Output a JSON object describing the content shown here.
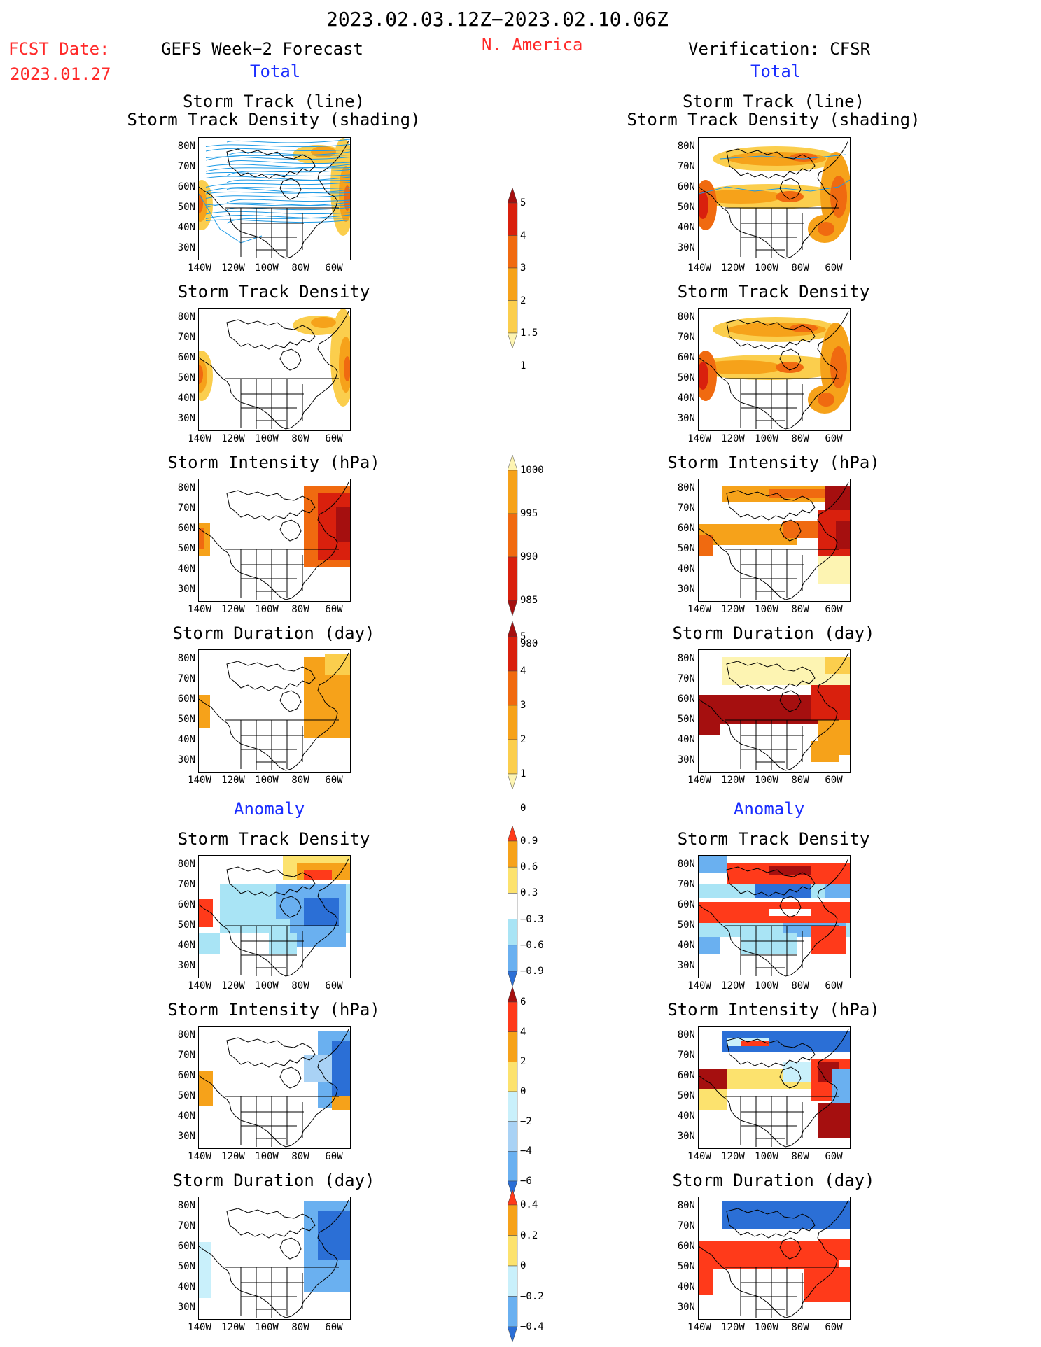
{
  "header": {
    "date_range": "2023.02.03.12Z−2023.02.10.06Z",
    "fcst_label": "FCST Date:",
    "fcst_date": "2023.01.27",
    "left_title": "GEFS Week−2 Forecast",
    "region": "N. America",
    "right_title": "Verification: CFSR"
  },
  "sections": {
    "total": "Total",
    "anomaly": "Anomaly"
  },
  "panel_titles": {
    "track": "Storm Track (line)\nStorm Track Density (shading)",
    "density": "Storm Track Density",
    "intensity": "Storm Intensity (hPa)",
    "duration": "Storm Duration (day)"
  },
  "axes": {
    "lat_labels": [
      "80N",
      "70N",
      "60N",
      "50N",
      "40N",
      "30N"
    ],
    "lon_labels": [
      "140W",
      "120W",
      "100W",
      "80W",
      "60W"
    ]
  },
  "colorbars": {
    "track_density": {
      "labels": [
        "5",
        "4",
        "3",
        "2",
        "1.5",
        "1"
      ],
      "colors": [
        "#a50f0f",
        "#d9200d",
        "#f06a10",
        "#f6a21a",
        "#fbce4d",
        "#fdf4b2"
      ]
    },
    "intensity": {
      "labels": [
        "1000",
        "995",
        "990",
        "985",
        "980"
      ],
      "colors": [
        "#fdf4b2",
        "#f6a21a",
        "#f06a10",
        "#d9200d",
        "#a50f0f"
      ]
    },
    "duration": {
      "labels": [
        "5",
        "4",
        "3",
        "2",
        "1",
        "0"
      ],
      "colors": [
        "#a50f0f",
        "#d9200d",
        "#f06a10",
        "#f6a21a",
        "#fbce4d",
        "#fdf4b2"
      ]
    },
    "anom_density": {
      "labels": [
        "0.9",
        "0.6",
        "0.3",
        "−0.3",
        "−0.6",
        "−0.9"
      ],
      "colors": [
        "#ff3a1a",
        "#f6a21a",
        "#fce26e",
        "#ffffff",
        "#a9e4f5",
        "#6ab0f0",
        "#2b6fd6"
      ]
    },
    "anom_intensity": {
      "labels": [
        "6",
        "4",
        "2",
        "0",
        "−2",
        "−4",
        "−6"
      ],
      "colors": [
        "#a50f0f",
        "#ff3a1a",
        "#f6a21a",
        "#fce26e",
        "#c9f0fb",
        "#a9d2f5",
        "#6ab0f0",
        "#2b6fd6"
      ]
    },
    "anom_duration": {
      "labels": [
        "0.4",
        "0.2",
        "0",
        "−0.2",
        "−0.4"
      ],
      "colors": [
        "#ff3a1a",
        "#f6a21a",
        "#fce26e",
        "#c9f0fb",
        "#6ab0f0",
        "#2b6fd6"
      ]
    }
  },
  "palette": {
    "track_line": "#1e9be6",
    "map_line": "#000000"
  }
}
